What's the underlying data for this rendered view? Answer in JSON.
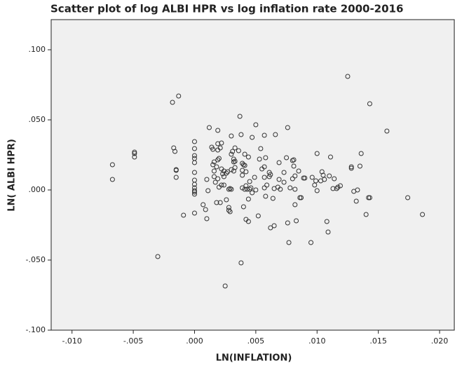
{
  "chart_data": {
    "type": "scatter",
    "title": "Scatter plot of log ALBI HPR vs log inflation rate 2000-2016",
    "x_label": "LN(INFLATION)",
    "y_label": "LN( ALBI HPR)",
    "xlim": [
      -0.0117,
      0.0212
    ],
    "ylim": [
      -0.1,
      0.1215
    ],
    "xticks": [
      {
        "value": -0.01,
        "label": "-.010"
      },
      {
        "value": -0.005,
        "label": "-.005"
      },
      {
        "value": 0,
        "label": ".000"
      },
      {
        "value": 0.005,
        "label": ".005"
      },
      {
        "value": 0.01,
        "label": ".010"
      },
      {
        "value": 0.015,
        "label": ".015"
      },
      {
        "value": 0.02,
        "label": ".020"
      }
    ],
    "yticks": [
      {
        "value": -0.1,
        "label": "-.100"
      },
      {
        "value": -0.05,
        "label": "-.050"
      },
      {
        "value": 0,
        "label": ".000"
      },
      {
        "value": 0.05,
        "label": ".050"
      },
      {
        "value": 0.1,
        "label": ".100"
      }
    ],
    "color": "#333333",
    "x": [
      -0.0067,
      -0.0067,
      -0.0049,
      -0.0049,
      -0.0049,
      -0.003,
      -0.0018,
      -0.0013,
      -0.0017,
      -0.0016,
      -0.0015,
      -0.0015,
      -0.0015,
      -0.0009,
      0,
      0,
      0,
      0,
      0,
      0,
      0,
      0,
      0,
      0,
      0,
      0,
      0,
      0.0007,
      0.0009,
      0.001,
      0.0011,
      0.001,
      0.0012,
      0.0014,
      0.0015,
      0.0016,
      0.0016,
      0.0016,
      0.0015,
      0.0017,
      0.0018,
      0.0018,
      0.0019,
      0.0019,
      0.0019,
      0.0019,
      0.0019,
      0.002,
      0.0021,
      0.002,
      0.0021,
      0.0022,
      0.0022,
      0.0022,
      0.0023,
      0.0024,
      0.0024,
      0.0024,
      0.0025,
      0.0026,
      0.0026,
      0.0027,
      0.0028,
      0.0028,
      0.0028,
      0.0029,
      0.0029,
      0.003,
      0.003,
      0.003,
      0.003,
      0.0031,
      0.0032,
      0.0032,
      0.0032,
      0.0033,
      0.0033,
      0.0033,
      0.0036,
      0.0037,
      0.0038,
      0.0038,
      0.0039,
      0.0039,
      0.0039,
      0.0039,
      0.004,
      0.004,
      0.0041,
      0.0041,
      0.0041,
      0.0042,
      0.0042,
      0.0042,
      0.0043,
      0.0044,
      0.0044,
      0.0044,
      0.0045,
      0.0045,
      0.0046,
      0.0047,
      0.0047,
      0.0049,
      0.005,
      0.005,
      0.0052,
      0.0053,
      0.0054,
      0.0055,
      0.0057,
      0.0057,
      0.0057,
      0.0057,
      0.0058,
      0.0058,
      0.0059,
      0.0061,
      0.0061,
      0.0062,
      0.0062,
      0.0064,
      0.0065,
      0.0065,
      0.0066,
      0.0068,
      0.0069,
      0.0069,
      0.007,
      0.0073,
      0.0073,
      0.0075,
      0.0076,
      0.0076,
      0.0077,
      0.0078,
      0.008,
      0.008,
      0.0081,
      0.0081,
      0.0082,
      0.0082,
      0.0082,
      0.0083,
      0.0085,
      0.0086,
      0.0087,
      0.0089,
      0.009,
      0.0095,
      0.0096,
      0.0098,
      0.0099,
      0.01,
      0.01,
      0.0103,
      0.0104,
      0.0105,
      0.0106,
      0.0108,
      0.0109,
      0.011,
      0.0111,
      0.0113,
      0.0114,
      0.0116,
      0.0117,
      0.0119,
      0.0125,
      0.0128,
      0.0128,
      0.013,
      0.0132,
      0.0133,
      0.0135,
      0.0136,
      0.014,
      0.0142,
      0.0143,
      0.0143,
      0.0157,
      0.0174,
      0.0186
    ],
    "values": [
      0.018,
      0.0075,
      0.027,
      0.026,
      0.0235,
      -0.0475,
      0.0625,
      0.067,
      0.03,
      0.0275,
      0.014,
      0.009,
      0.0145,
      -0.018,
      0.0345,
      0.0295,
      0.0245,
      0.0225,
      0.0195,
      0.0125,
      0.007,
      0.004,
      0.0015,
      -0.0005,
      -0.0015,
      -0.003,
      -0.0165,
      -0.0105,
      -0.014,
      -0.0205,
      -0.0005,
      0.0075,
      0.0445,
      0.0305,
      0.029,
      0.02,
      0.0135,
      0.0095,
      0.018,
      0.0055,
      0.0165,
      -0.009,
      0.0425,
      0.033,
      0.0285,
      0.0215,
      0.008,
      0.002,
      -0.009,
      0.0225,
      0.03,
      0.0335,
      0.0035,
      0.015,
      0.0115,
      0.0135,
      0.0095,
      0.0035,
      -0.0685,
      -0.007,
      0.012,
      0.013,
      -0.0125,
      -0.0145,
      0.0005,
      -0.0155,
      0.001,
      0.0005,
      0.0255,
      0.0145,
      0.0385,
      0.0275,
      0.022,
      0.0135,
      0.02,
      0.0205,
      0.03,
      0.016,
      0.028,
      0.0525,
      -0.052,
      0.0395,
      0.019,
      0.014,
      0.0105,
      0.0015,
      -0.012,
      0.018,
      0.0255,
      0.0175,
      0.0005,
      -0.021,
      0.003,
      0.013,
      0.0005,
      0.0235,
      -0.0065,
      -0.0225,
      0.0005,
      0.006,
      0.0015,
      0.0375,
      -0.002,
      0.009,
      0.0465,
      0,
      -0.0185,
      0.022,
      0.0295,
      0.015,
      0.039,
      0.0165,
      0.0015,
      0.009,
      0.023,
      -0.0045,
      0.0035,
      0.0095,
      0.0125,
      0.011,
      -0.027,
      -0.006,
      -0.0255,
      0.001,
      0.0395,
      0.002,
      0.0195,
      0.0075,
      0.0005,
      0.0055,
      0.0125,
      0.023,
      -0.0235,
      0.0445,
      -0.0375,
      0.0015,
      0.008,
      0.021,
      0.017,
      0.0215,
      0.01,
      0.0005,
      -0.0105,
      -0.022,
      0.0135,
      -0.0055,
      -0.0055,
      0.0085,
      0.0085,
      -0.0375,
      0.009,
      0.0035,
      0.0065,
      0.026,
      -0.0005,
      0.0065,
      0.013,
      0.0105,
      0.0075,
      -0.0225,
      -0.03,
      0.01,
      0.0235,
      0.001,
      0.008,
      0.001,
      0.002,
      0.003,
      0.081,
      0.0165,
      0.0155,
      -0.001,
      -0.008,
      0,
      0.017,
      0.026,
      -0.0175,
      -0.0055,
      -0.0055,
      0.0615,
      0.042,
      -0.0055,
      -0.0175
    ]
  }
}
